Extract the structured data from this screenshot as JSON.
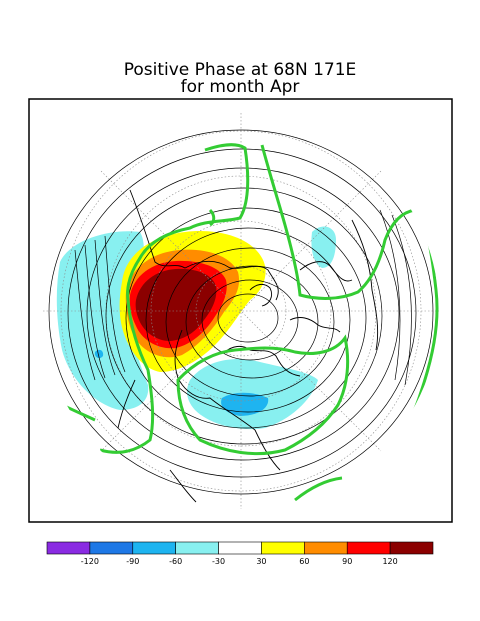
{
  "title": {
    "line1": "Positive Phase at  68N 171E",
    "line2": "for month Apr"
  },
  "map": {
    "projection": "north-polar-stereographic",
    "shading_description": "regression anomaly shading with contour overlay",
    "colors": {
      "frame": "#000000",
      "coastline": "#000000",
      "contour": "#000000",
      "graticule": "#8c8c8c",
      "zero_line": "#33cc33"
    }
  },
  "colorbar": {
    "bins": [
      {
        "color": "#8a2be2"
      },
      {
        "color": "#1e78e6"
      },
      {
        "color": "#1eb4f0"
      },
      {
        "color": "#88f0f0"
      },
      {
        "color": "#ffffff"
      },
      {
        "color": "#ffff00"
      },
      {
        "color": "#ff8c00"
      },
      {
        "color": "#ff0000"
      },
      {
        "color": "#8b0000"
      }
    ],
    "tick_labels": [
      "-120",
      "-90",
      "-60",
      "-30",
      "30",
      "60",
      "90",
      "120"
    ]
  }
}
